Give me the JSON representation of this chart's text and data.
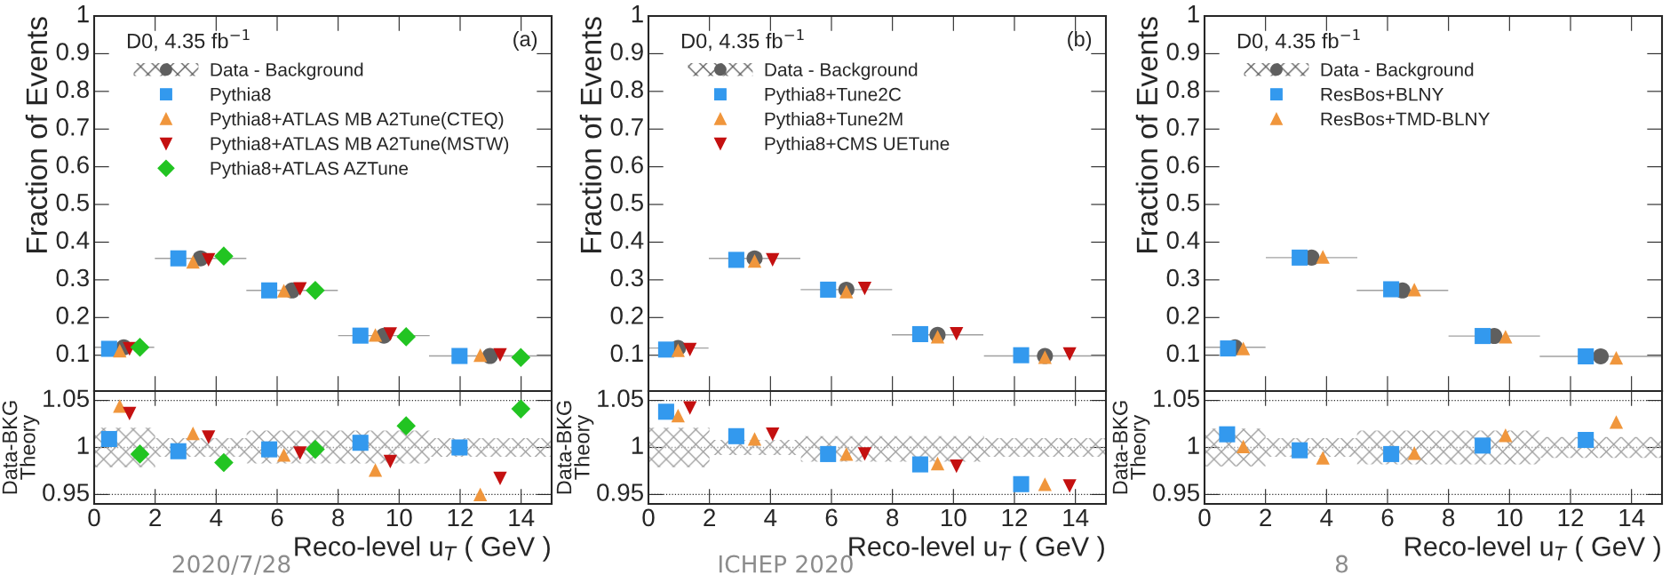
{
  "chart_data": [
    {
      "type": "scatter",
      "ylabel": "Fraction of Events",
      "xlim": [
        0,
        15
      ],
      "xticks": [
        0,
        2,
        4,
        6,
        8,
        10,
        12,
        14
      ],
      "ylim": [
        0.005,
        1
      ],
      "yticks": [
        0.1,
        0.2,
        0.3,
        0.4,
        0.5,
        0.6,
        0.7,
        0.8,
        0.9,
        1
      ],
      "tick_labels": "y",
      "legend": "top left",
      "annotations": [
        "D0, 4.35 fb$^{−1}$",
        "(a)"
      ],
      "series": [
        {
          "name": "Data - Background",
          "color": "#5f5f5f",
          "marker": "circle",
          "x": [
            0.97,
            3.49,
            6.49,
            9.5,
            12.98
          ],
          "values": [
            0.121,
            0.357,
            0.272,
            0.152,
            0.098
          ],
          "xerrors": [
            1,
            1.5,
            1.5,
            1.5,
            2
          ]
        },
        {
          "name": "Pythia8",
          "color": "#3399ee",
          "marker": "square",
          "x": [
            0.49,
            2.76,
            5.74,
            8.73,
            11.98
          ],
          "values": [
            0.117,
            0.357,
            0.272,
            0.152,
            0.098
          ]
        },
        {
          "name": "Pythia8+ATLAS MB A2Tune(CTEQ)",
          "color": "#f0963c",
          "marker": "triangle",
          "x": [
            0.84,
            3.24,
            6.22,
            9.22,
            12.66
          ],
          "values": [
            0.112,
            0.348,
            0.271,
            0.154,
            0.1
          ]
        },
        {
          "name": "Pythia8+ATLAS MB A2Tune(MSTW)",
          "color": "#c41010",
          "marker": "triangle_down",
          "x": [
            1.16,
            3.75,
            6.75,
            9.71,
            13.31
          ],
          "values": [
            0.117,
            0.353,
            0.276,
            0.156,
            0.101
          ]
        },
        {
          "name": "Pythia8+ATLAS AZTune",
          "color": "#22c422",
          "marker": "diamond",
          "x": [
            1.5,
            4.25,
            7.25,
            10.23,
            13.99
          ],
          "values": [
            0.121,
            0.363,
            0.272,
            0.149,
            0.094
          ]
        }
      ]
    },
    {
      "type": "scatter",
      "ylabel": "Fraction of Events",
      "xlim": [
        0,
        15
      ],
      "xticks": [
        0,
        2,
        4,
        6,
        8,
        10,
        12,
        14
      ],
      "ylim": [
        0.005,
        1
      ],
      "yticks": [
        0.1,
        0.2,
        0.3,
        0.4,
        0.5,
        0.6,
        0.7,
        0.8,
        0.9,
        1
      ],
      "tick_labels": "y",
      "legend": "top left",
      "annotations": [
        "D0, 4.35 fb$^{−1}$",
        "(b)"
      ],
      "series": [
        {
          "name": "Data - Background",
          "color": "#5f5f5f",
          "marker": "circle",
          "x": [
            0.97,
            3.48,
            6.49,
            9.48,
            13.0
          ],
          "values": [
            0.119,
            0.357,
            0.274,
            0.154,
            0.098
          ],
          "xerrors": [
            1,
            1.5,
            1.5,
            1.5,
            2
          ]
        },
        {
          "name": "Pythia8+Tune2C",
          "color": "#3399ee",
          "marker": "square",
          "x": [
            0.58,
            2.88,
            5.89,
            8.91,
            12.22
          ],
          "values": [
            0.115,
            0.353,
            0.274,
            0.156,
            0.1
          ]
        },
        {
          "name": "Pythia8+Tune2M",
          "color": "#f0963c",
          "marker": "triangle",
          "x": [
            0.97,
            3.48,
            6.49,
            9.48,
            13.0
          ],
          "values": [
            0.113,
            0.35,
            0.269,
            0.149,
            0.095
          ]
        },
        {
          "name": "Pythia8+CMS UETune",
          "color": "#c41010",
          "marker": "triangle_down",
          "x": [
            1.36,
            4.07,
            7.09,
            10.1,
            13.81
          ],
          "values": [
            0.115,
            0.353,
            0.277,
            0.157,
            0.103
          ]
        }
      ]
    },
    {
      "type": "scatter",
      "ylabel": "Fraction of Events",
      "xlim": [
        0,
        15
      ],
      "xticks": [
        0,
        2,
        4,
        6,
        8,
        10,
        12,
        14
      ],
      "ylim": [
        0.005,
        1
      ],
      "yticks": [
        0.1,
        0.2,
        0.3,
        0.4,
        0.5,
        0.6,
        0.7,
        0.8,
        0.9,
        1
      ],
      "tick_labels": "y",
      "legend": "top left",
      "annotations": [
        "D0, 4.35 fb$^{−1}$"
      ],
      "series": [
        {
          "name": "Data - Background",
          "color": "#5f5f5f",
          "marker": "circle",
          "x": [
            1.0,
            3.51,
            6.49,
            9.5,
            12.99
          ],
          "values": [
            0.121,
            0.359,
            0.272,
            0.151,
            0.097
          ],
          "xerrors": [
            1,
            1.5,
            1.5,
            1.5,
            2
          ]
        },
        {
          "name": "ResBos+BLNY",
          "color": "#3399ee",
          "marker": "square",
          "x": [
            0.77,
            3.12,
            6.12,
            9.12,
            12.5
          ],
          "values": [
            0.118,
            0.359,
            0.275,
            0.151,
            0.097
          ]
        },
        {
          "name": "ResBos+TMD-BLNY",
          "color": "#f0963c",
          "marker": "triangle",
          "x": [
            1.27,
            3.88,
            6.88,
            9.87,
            13.5
          ],
          "values": [
            0.118,
            0.361,
            0.274,
            0.149,
            0.093
          ]
        }
      ]
    },
    {
      "type": "scatter",
      "xlabel": "Reco-level u$_{T}$ ( GeV )",
      "ylabel": "Data-BKG\nTheory",
      "xlim": [
        0,
        15
      ],
      "xticks": [
        0,
        2,
        4,
        6,
        8,
        10,
        12,
        14
      ],
      "ylim": [
        0.94,
        1.06
      ],
      "yticks": [
        0.95,
        1,
        1.05
      ],
      "annotations": [
        "2020/7/28"
      ],
      "ref_lines": [
        {
          "axis": "y",
          "value": 1.05,
          "line_style": "dotted"
        },
        {
          "axis": "y",
          "value": 0.95,
          "line_style": "dotted"
        }
      ],
      "series": [
        {
          "type": "step",
          "color": "#a0a0a0",
          "line_style": "dotted",
          "x": [
            0,
            2,
            5,
            8,
            11,
            15
          ],
          "values": [
            1,
            1,
            1,
            1,
            1,
            1
          ],
          "lower": [
            0.979,
            0.99,
            0.983,
            0.983,
            0.99,
            0.99
          ],
          "upper": [
            1.021,
            1.01,
            1.018,
            1.018,
            1.01,
            1.01
          ]
        },
        {
          "color": "#3399ee",
          "marker": "square",
          "x": [
            0.49,
            2.76,
            5.74,
            8.73,
            11.98
          ],
          "values": [
            1.009,
            0.996,
            0.998,
            1.005,
            1.0
          ]
        },
        {
          "color": "#f0963c",
          "marker": "triangle",
          "x": [
            0.84,
            3.24,
            6.22,
            9.22,
            12.66
          ],
          "values": [
            1.044,
            1.015,
            0.992,
            0.976,
            0.95
          ]
        },
        {
          "color": "#c41010",
          "marker": "triangle_down",
          "x": [
            1.16,
            3.75,
            6.75,
            9.71,
            13.31
          ],
          "values": [
            1.036,
            1.011,
            0.994,
            0.985,
            0.967
          ]
        },
        {
          "color": "#22c422",
          "marker": "diamond",
          "x": [
            1.5,
            4.25,
            7.25,
            10.23,
            13.99
          ],
          "values": [
            0.993,
            0.984,
            0.998,
            1.023,
            1.041
          ]
        }
      ]
    },
    {
      "type": "scatter",
      "xlabel": "Reco-level u$_{T}$ ( GeV )",
      "ylabel": "Data-BKG\nTheory",
      "xlim": [
        0,
        15
      ],
      "xticks": [
        0,
        2,
        4,
        6,
        8,
        10,
        12,
        14
      ],
      "ylim": [
        0.94,
        1.06
      ],
      "yticks": [
        0.95,
        1,
        1.05
      ],
      "annotations": [
        "ICHEP 2020"
      ],
      "ref_lines": [
        {
          "axis": "y",
          "value": 1.05,
          "line_style": "dotted"
        },
        {
          "axis": "y",
          "value": 0.95,
          "line_style": "dotted"
        }
      ],
      "series": [
        {
          "type": "step",
          "color": "#a0a0a0",
          "line_style": "dotted",
          "x": [
            0,
            2,
            5,
            8,
            11,
            15
          ],
          "values": [
            1,
            1,
            1,
            1,
            1,
            1
          ],
          "lower": [
            0.979,
            0.992,
            0.985,
            0.985,
            0.99,
            0.99
          ],
          "upper": [
            1.021,
            1.008,
            1.012,
            1.012,
            1.01,
            1.01
          ]
        },
        {
          "color": "#3399ee",
          "marker": "square",
          "x": [
            0.58,
            2.88,
            5.89,
            8.91,
            12.22
          ],
          "values": [
            1.038,
            1.012,
            0.993,
            0.982,
            0.961
          ]
        },
        {
          "color": "#f0963c",
          "marker": "triangle",
          "x": [
            0.97,
            3.48,
            6.49,
            9.48,
            13.0
          ],
          "values": [
            1.034,
            1.009,
            0.993,
            0.983,
            0.961
          ]
        },
        {
          "color": "#c41010",
          "marker": "triangle_down",
          "x": [
            1.36,
            4.07,
            7.09,
            10.1,
            13.81
          ],
          "values": [
            1.042,
            1.014,
            0.993,
            0.98,
            0.959
          ]
        }
      ]
    },
    {
      "type": "scatter",
      "xlabel": "Reco-level u$_{T}$ ( GeV )",
      "ylabel": "Data-BKG\nTheory",
      "xlim": [
        0,
        15
      ],
      "xticks": [
        0,
        2,
        4,
        6,
        8,
        10,
        12,
        14
      ],
      "ylim": [
        0.94,
        1.06
      ],
      "yticks": [
        0.95,
        1,
        1.05
      ],
      "annotations": [
        "8"
      ],
      "ref_lines": [
        {
          "axis": "y",
          "value": 1.05,
          "line_style": "dotted"
        },
        {
          "axis": "y",
          "value": 0.95,
          "line_style": "dotted"
        }
      ],
      "series": [
        {
          "type": "step",
          "color": "#a0a0a0",
          "line_style": "dotted",
          "x": [
            0,
            2,
            5,
            8,
            11,
            15
          ],
          "values": [
            1,
            1,
            1,
            1,
            1,
            1
          ],
          "lower": [
            0.98,
            0.99,
            0.982,
            0.982,
            0.989,
            0.989
          ],
          "upper": [
            1.02,
            1.01,
            1.018,
            1.018,
            1.011,
            1.011
          ]
        },
        {
          "color": "#3399ee",
          "marker": "square",
          "x": [
            0.74,
            3.12,
            6.12,
            9.12,
            12.5
          ],
          "values": [
            1.014,
            0.997,
            0.993,
            1.002,
            1.008
          ]
        },
        {
          "color": "#f0963c",
          "marker": "triangle",
          "x": [
            1.27,
            3.88,
            6.88,
            9.87,
            13.5
          ],
          "values": [
            1.001,
            0.989,
            0.994,
            1.013,
            1.027
          ]
        }
      ]
    }
  ]
}
